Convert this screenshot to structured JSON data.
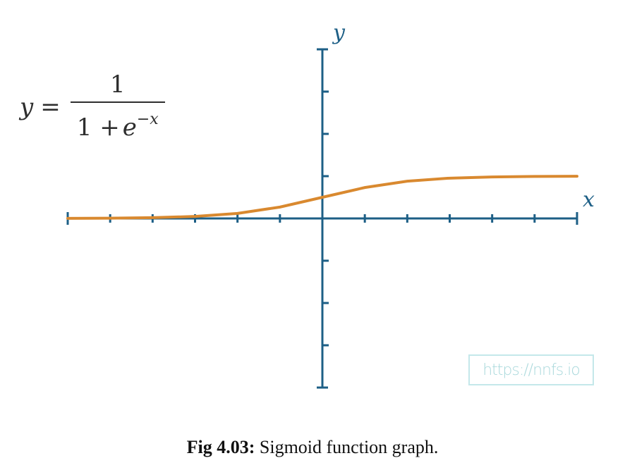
{
  "chart_data": {
    "type": "line",
    "function": "sigmoid",
    "x": [
      -6,
      -5,
      -4,
      -3,
      -2,
      -1,
      0,
      1,
      2,
      3,
      4,
      5,
      6
    ],
    "series": [
      {
        "values": [
          0.0025,
          0.0067,
          0.018,
          0.047,
          0.119,
          0.269,
          0.5,
          0.731,
          0.881,
          0.953,
          0.982,
          0.993,
          0.998
        ],
        "color": "#d9892f"
      }
    ],
    "xlim": [
      -6,
      6
    ],
    "ylim": [
      -4,
      4
    ],
    "x_ticks": 12,
    "y_ticks": 8,
    "xlabel": "x",
    "ylabel": "y",
    "axis_color": "#1d5f86",
    "grid": false
  },
  "equation": {
    "lhs": "y",
    "op": "=",
    "numerator": "1",
    "denominator_prefix": "1 +",
    "denominator_base": "e",
    "denominator_exp": "−x"
  },
  "watermark": "https://nnfs.io",
  "caption": {
    "label": "Fig 4.03:",
    "text": "Sigmoid function graph."
  }
}
